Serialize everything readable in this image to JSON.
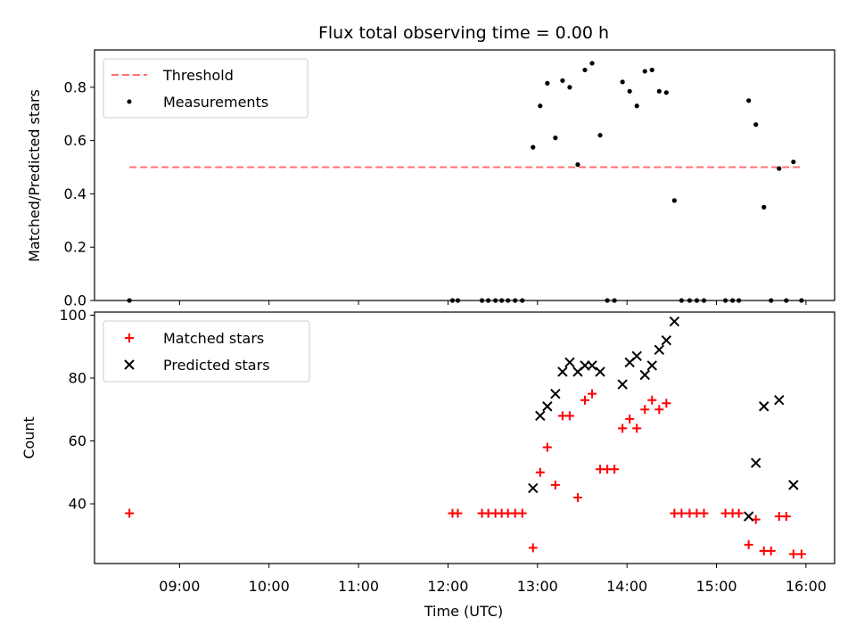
{
  "chart_data": [
    {
      "type": "scatter",
      "title": "Flux total observing time = 0.00 h",
      "xlabel": "",
      "ylabel": "Matched/Predicted stars",
      "xlim": [
        8.05,
        16.32
      ],
      "ylim": [
        0.0,
        0.94
      ],
      "y_ticks": [
        "0.0",
        "0.2",
        "0.4",
        "0.6",
        "0.8"
      ],
      "legend": [
        "Threshold",
        "Measurements"
      ],
      "legend_position": "top-left",
      "threshold": {
        "name": "Threshold",
        "value": 0.5,
        "x": [
          8.44,
          15.95
        ],
        "color": "#ff7070"
      },
      "series": [
        {
          "name": "Measurements",
          "color": "#000000",
          "points": [
            [
              8.44,
              0.0
            ],
            [
              12.05,
              0.0
            ],
            [
              12.11,
              0.0
            ],
            [
              12.38,
              0.0
            ],
            [
              12.45,
              0.0
            ],
            [
              12.53,
              0.0
            ],
            [
              12.6,
              0.0
            ],
            [
              12.67,
              0.0
            ],
            [
              12.75,
              0.0
            ],
            [
              12.83,
              0.0
            ],
            [
              12.95,
              0.575
            ],
            [
              13.03,
              0.73
            ],
            [
              13.11,
              0.815
            ],
            [
              13.2,
              0.61
            ],
            [
              13.28,
              0.825
            ],
            [
              13.36,
              0.8
            ],
            [
              13.45,
              0.51
            ],
            [
              13.53,
              0.865
            ],
            [
              13.61,
              0.89
            ],
            [
              13.7,
              0.62
            ],
            [
              13.78,
              0.0
            ],
            [
              13.86,
              0.0
            ],
            [
              13.95,
              0.82
            ],
            [
              14.03,
              0.785
            ],
            [
              14.11,
              0.73
            ],
            [
              14.2,
              0.86
            ],
            [
              14.28,
              0.865
            ],
            [
              14.36,
              0.785
            ],
            [
              14.44,
              0.78
            ],
            [
              14.53,
              0.375
            ],
            [
              14.61,
              0.0
            ],
            [
              14.7,
              0.0
            ],
            [
              14.78,
              0.0
            ],
            [
              14.86,
              0.0
            ],
            [
              15.1,
              0.0
            ],
            [
              15.18,
              0.0
            ],
            [
              15.25,
              0.0
            ],
            [
              15.36,
              0.75
            ],
            [
              15.44,
              0.66
            ],
            [
              15.53,
              0.35
            ],
            [
              15.61,
              0.0
            ],
            [
              15.7,
              0.495
            ],
            [
              15.78,
              0.0
            ],
            [
              15.86,
              0.52
            ],
            [
              15.95,
              0.0
            ]
          ]
        }
      ]
    },
    {
      "type": "scatter",
      "title": "",
      "xlabel": "Time (UTC)",
      "ylabel": "Count",
      "xlim": [
        8.05,
        16.32
      ],
      "ylim": [
        21,
        101
      ],
      "x_ticks": [
        {
          "value": 9,
          "label": "09:00"
        },
        {
          "value": 10,
          "label": "10:00"
        },
        {
          "value": 11,
          "label": "11:00"
        },
        {
          "value": 12,
          "label": "12:00"
        },
        {
          "value": 13,
          "label": "13:00"
        },
        {
          "value": 14,
          "label": "14:00"
        },
        {
          "value": 15,
          "label": "15:00"
        },
        {
          "value": 16,
          "label": "16:00"
        }
      ],
      "y_ticks": [
        "40",
        "60",
        "80",
        "100"
      ],
      "legend": [
        "Matched stars",
        "Predicted stars"
      ],
      "legend_position": "top-left",
      "series": [
        {
          "name": "Matched stars",
          "marker": "plus",
          "color": "#ff0000",
          "points": [
            [
              8.44,
              37
            ],
            [
              12.05,
              37
            ],
            [
              12.11,
              37
            ],
            [
              12.38,
              37
            ],
            [
              12.45,
              37
            ],
            [
              12.53,
              37
            ],
            [
              12.6,
              37
            ],
            [
              12.67,
              37
            ],
            [
              12.75,
              37
            ],
            [
              12.83,
              37
            ],
            [
              12.95,
              26
            ],
            [
              13.03,
              50
            ],
            [
              13.11,
              58
            ],
            [
              13.2,
              46
            ],
            [
              13.28,
              68
            ],
            [
              13.36,
              68
            ],
            [
              13.45,
              42
            ],
            [
              13.53,
              73
            ],
            [
              13.61,
              75
            ],
            [
              13.7,
              51
            ],
            [
              13.78,
              51
            ],
            [
              13.86,
              51
            ],
            [
              13.95,
              64
            ],
            [
              14.03,
              67
            ],
            [
              14.11,
              64
            ],
            [
              14.2,
              70
            ],
            [
              14.28,
              73
            ],
            [
              14.36,
              70
            ],
            [
              14.44,
              72
            ],
            [
              14.53,
              37
            ],
            [
              14.61,
              37
            ],
            [
              14.7,
              37
            ],
            [
              14.78,
              37
            ],
            [
              14.86,
              37
            ],
            [
              15.1,
              37
            ],
            [
              15.18,
              37
            ],
            [
              15.25,
              37
            ],
            [
              15.36,
              27
            ],
            [
              15.44,
              35
            ],
            [
              15.53,
              25
            ],
            [
              15.61,
              25
            ],
            [
              15.7,
              36
            ],
            [
              15.78,
              36
            ],
            [
              15.86,
              24
            ],
            [
              15.95,
              24
            ]
          ]
        },
        {
          "name": "Predicted stars",
          "marker": "x",
          "color": "#000000",
          "points": [
            [
              12.95,
              45
            ],
            [
              13.03,
              68
            ],
            [
              13.11,
              71
            ],
            [
              13.2,
              75
            ],
            [
              13.28,
              82
            ],
            [
              13.36,
              85
            ],
            [
              13.45,
              82
            ],
            [
              13.53,
              84
            ],
            [
              13.61,
              84
            ],
            [
              13.7,
              82
            ],
            [
              13.95,
              78
            ],
            [
              14.03,
              85
            ],
            [
              14.11,
              87
            ],
            [
              14.2,
              81
            ],
            [
              14.28,
              84
            ],
            [
              14.36,
              89
            ],
            [
              14.44,
              92
            ],
            [
              14.53,
              98
            ],
            [
              15.36,
              36
            ],
            [
              15.44,
              53
            ],
            [
              15.53,
              71
            ],
            [
              15.7,
              73
            ],
            [
              15.86,
              46
            ]
          ]
        }
      ]
    }
  ]
}
